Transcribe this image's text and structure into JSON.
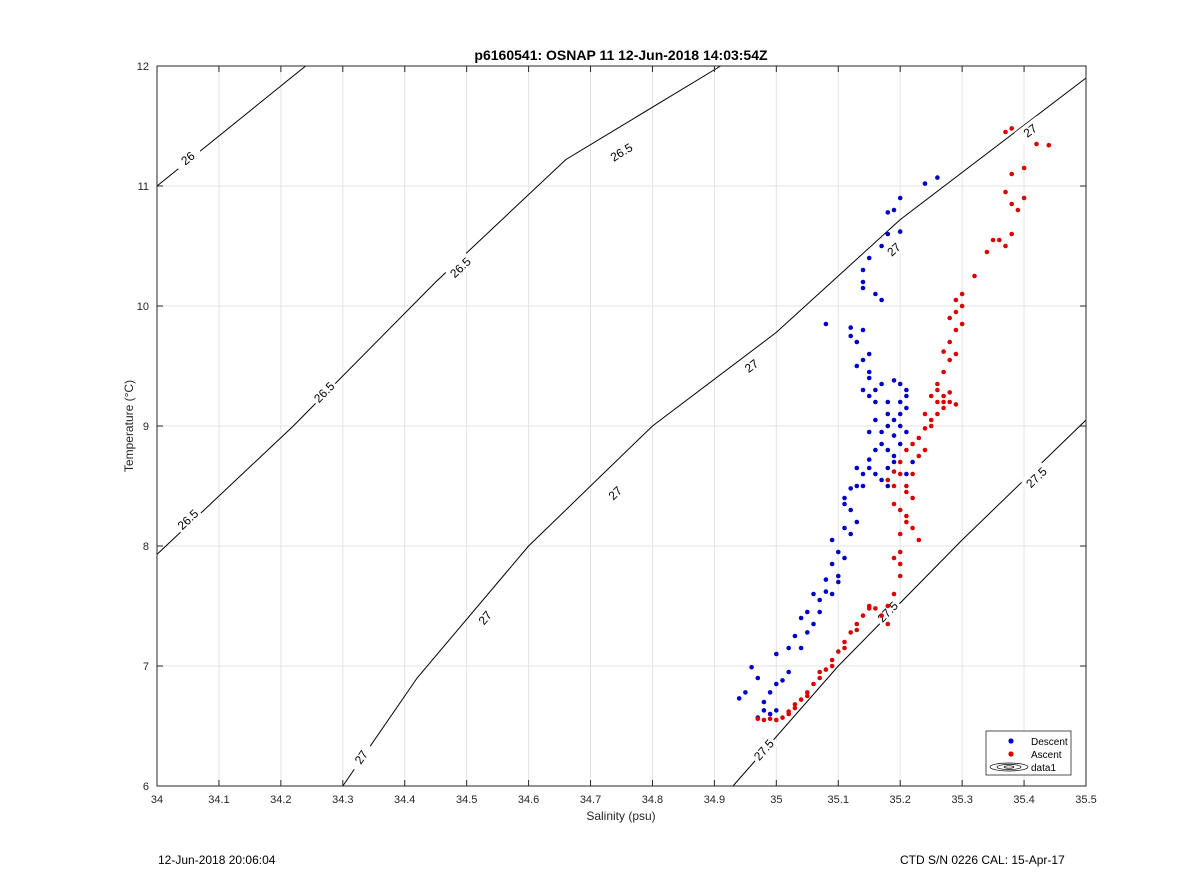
{
  "chart_data": {
    "type": "scatter",
    "title": "p6160541: OSNAP 11 12-Jun-2018 14:03:54Z",
    "xlabel": "Salinity (psu)",
    "ylabel": "Temperature (°C)",
    "xlim": [
      34,
      35.5
    ],
    "ylim": [
      6,
      12
    ],
    "xticks": [
      34,
      34.1,
      34.2,
      34.3,
      34.4,
      34.5,
      34.6,
      34.7,
      34.8,
      34.9,
      35,
      35.1,
      35.2,
      35.3,
      35.4,
      35.5
    ],
    "xtick_labels": [
      "34",
      "34.1",
      "34.2",
      "34.3",
      "34.4",
      "34.5",
      "34.6",
      "34.7",
      "34.8",
      "34.9",
      "35",
      "35.1",
      "35.2",
      "35.3",
      "35.4",
      "35.5"
    ],
    "yticks": [
      6,
      7,
      8,
      9,
      10,
      11,
      12
    ],
    "ytick_labels": [
      "6",
      "7",
      "8",
      "9",
      "10",
      "11",
      "12"
    ],
    "grid": true,
    "legend_position": "bottom-right",
    "legend": [
      {
        "name": "Descent",
        "color": "#0000cc",
        "marker": "dot"
      },
      {
        "name": "Ascent",
        "color": "#dd0000",
        "marker": "dot"
      },
      {
        "name": "data1",
        "marker": "contour"
      }
    ],
    "contours": [
      {
        "level": "26",
        "points": [
          [
            34.0,
            11.0
          ],
          [
            34.24,
            12.0
          ]
        ],
        "labels": [
          {
            "x": 34.05,
            "y": 11.23
          }
        ]
      },
      {
        "level": "26.5",
        "points": [
          [
            34.0,
            7.93
          ],
          [
            34.22,
            9.0
          ],
          [
            34.45,
            10.2
          ],
          [
            34.66,
            11.22
          ],
          [
            34.91,
            12.0
          ]
        ],
        "labels": [
          {
            "x": 34.05,
            "y": 8.22
          },
          {
            "x": 34.27,
            "y": 9.28
          },
          {
            "x": 34.49,
            "y": 10.32
          },
          {
            "x": 34.75,
            "y": 11.28
          }
        ]
      },
      {
        "level": "27",
        "points": [
          [
            34.3,
            6.0
          ],
          [
            34.42,
            6.9
          ],
          [
            34.6,
            8.0
          ],
          [
            34.8,
            9.0
          ],
          [
            35.0,
            9.78
          ],
          [
            35.2,
            10.72
          ],
          [
            35.5,
            11.9
          ]
        ],
        "labels": [
          {
            "x": 34.33,
            "y": 6.24
          },
          {
            "x": 34.53,
            "y": 7.4
          },
          {
            "x": 34.74,
            "y": 8.44
          },
          {
            "x": 34.96,
            "y": 9.5
          },
          {
            "x": 35.19,
            "y": 10.47
          },
          {
            "x": 35.41,
            "y": 11.46
          }
        ]
      },
      {
        "level": "27.5",
        "points": [
          [
            34.93,
            6.0
          ],
          [
            35.1,
            7.0
          ],
          [
            35.3,
            8.05
          ],
          [
            35.5,
            9.05
          ]
        ],
        "labels": [
          {
            "x": 34.98,
            "y": 6.3
          },
          {
            "x": 35.18,
            "y": 7.45
          },
          {
            "x": 35.42,
            "y": 8.57
          }
        ]
      }
    ],
    "series": [
      {
        "name": "Descent",
        "color": "#0000cc",
        "points": [
          [
            34.94,
            6.73
          ],
          [
            34.95,
            6.78
          ],
          [
            34.96,
            6.99
          ],
          [
            34.97,
            6.9
          ],
          [
            34.97,
            6.57
          ],
          [
            34.98,
            6.63
          ],
          [
            34.99,
            6.78
          ],
          [
            34.99,
            6.6
          ],
          [
            35.0,
            6.63
          ],
          [
            35.01,
            6.88
          ],
          [
            35.0,
            7.1
          ],
          [
            35.02,
            7.15
          ],
          [
            35.03,
            7.25
          ],
          [
            35.04,
            7.4
          ],
          [
            35.05,
            7.28
          ],
          [
            35.06,
            7.35
          ],
          [
            35.07,
            7.55
          ],
          [
            35.08,
            7.62
          ],
          [
            35.08,
            7.72
          ],
          [
            35.09,
            7.85
          ],
          [
            35.1,
            7.95
          ],
          [
            35.09,
            8.05
          ],
          [
            35.1,
            7.7
          ],
          [
            35.11,
            8.15
          ],
          [
            35.12,
            8.3
          ],
          [
            35.11,
            8.4
          ],
          [
            35.12,
            8.48
          ],
          [
            35.13,
            8.5
          ],
          [
            35.14,
            8.6
          ],
          [
            35.15,
            8.72
          ],
          [
            35.16,
            8.8
          ],
          [
            35.17,
            8.55
          ],
          [
            35.18,
            8.65
          ],
          [
            35.19,
            8.75
          ],
          [
            35.2,
            8.85
          ],
          [
            35.21,
            8.95
          ],
          [
            35.15,
            8.95
          ],
          [
            35.16,
            9.05
          ],
          [
            35.18,
            9.1
          ],
          [
            35.2,
            9.2
          ],
          [
            35.21,
            9.3
          ],
          [
            35.17,
            9.35
          ],
          [
            35.19,
            9.38
          ],
          [
            35.15,
            9.45
          ],
          [
            35.14,
            9.55
          ],
          [
            35.13,
            9.7
          ],
          [
            35.14,
            9.8
          ],
          [
            35.12,
            9.82
          ],
          [
            35.08,
            9.85
          ],
          [
            35.16,
            10.1
          ],
          [
            35.17,
            10.05
          ],
          [
            35.14,
            10.15
          ],
          [
            35.14,
            10.3
          ],
          [
            35.15,
            10.4
          ],
          [
            35.17,
            10.5
          ],
          [
            35.18,
            10.6
          ],
          [
            35.2,
            10.62
          ],
          [
            35.18,
            10.78
          ],
          [
            35.2,
            10.9
          ],
          [
            35.24,
            11.02
          ],
          [
            35.26,
            11.07
          ],
          [
            35.16,
            9.2
          ],
          [
            35.18,
            9.0
          ],
          [
            35.2,
            9.1
          ],
          [
            35.19,
            8.92
          ],
          [
            35.17,
            8.85
          ],
          [
            35.15,
            8.65
          ],
          [
            35.14,
            8.5
          ],
          [
            35.21,
            8.6
          ],
          [
            35.22,
            8.7
          ],
          [
            35.13,
            8.2
          ],
          [
            35.12,
            8.1
          ],
          [
            35.11,
            7.9
          ],
          [
            35.1,
            7.75
          ],
          [
            35.09,
            7.6
          ],
          [
            35.07,
            7.45
          ],
          [
            35.06,
            7.6
          ],
          [
            35.05,
            7.45
          ],
          [
            35.04,
            7.15
          ],
          [
            35.02,
            6.95
          ],
          [
            35.0,
            6.85
          ],
          [
            34.98,
            6.7
          ],
          [
            35.15,
            9.25
          ],
          [
            35.18,
            9.2
          ],
          [
            35.19,
            9.05
          ],
          [
            35.16,
            8.6
          ],
          [
            35.18,
            8.5
          ],
          [
            35.2,
            9.35
          ],
          [
            35.21,
            9.25
          ],
          [
            35.13,
            9.5
          ],
          [
            35.15,
            9.6
          ],
          [
            35.12,
            9.75
          ],
          [
            35.14,
            10.2
          ],
          [
            35.19,
            10.8
          ],
          [
            35.21,
            9.15
          ],
          [
            35.17,
            8.95
          ],
          [
            35.15,
            9.4
          ],
          [
            35.16,
            9.3
          ],
          [
            35.18,
            8.8
          ],
          [
            35.19,
            8.7
          ],
          [
            35.13,
            8.65
          ],
          [
            35.11,
            8.35
          ],
          [
            35.14,
            9.3
          ],
          [
            35.2,
            9.0
          ]
        ]
      },
      {
        "name": "Ascent",
        "color": "#dd0000",
        "points": [
          [
            34.97,
            6.56
          ],
          [
            34.98,
            6.55
          ],
          [
            34.99,
            6.56
          ],
          [
            35.0,
            6.55
          ],
          [
            35.01,
            6.57
          ],
          [
            35.02,
            6.6
          ],
          [
            35.03,
            6.65
          ],
          [
            35.04,
            6.72
          ],
          [
            35.05,
            6.78
          ],
          [
            35.06,
            6.85
          ],
          [
            35.07,
            6.9
          ],
          [
            35.08,
            6.97
          ],
          [
            35.09,
            7.05
          ],
          [
            35.1,
            7.12
          ],
          [
            35.11,
            7.2
          ],
          [
            35.12,
            7.28
          ],
          [
            35.13,
            7.35
          ],
          [
            35.14,
            7.42
          ],
          [
            35.15,
            7.5
          ],
          [
            35.16,
            7.48
          ],
          [
            35.17,
            7.42
          ],
          [
            35.18,
            7.35
          ],
          [
            35.19,
            7.6
          ],
          [
            35.2,
            7.75
          ],
          [
            35.19,
            7.9
          ],
          [
            35.2,
            7.95
          ],
          [
            35.2,
            8.1
          ],
          [
            35.21,
            8.2
          ],
          [
            35.2,
            8.3
          ],
          [
            35.22,
            8.4
          ],
          [
            35.21,
            8.5
          ],
          [
            35.2,
            8.6
          ],
          [
            35.19,
            8.62
          ],
          [
            35.18,
            8.55
          ],
          [
            35.2,
            8.7
          ],
          [
            35.21,
            8.8
          ],
          [
            35.22,
            8.85
          ],
          [
            35.23,
            8.9
          ],
          [
            35.24,
            8.98
          ],
          [
            35.25,
            9.05
          ],
          [
            35.26,
            9.1
          ],
          [
            35.27,
            9.15
          ],
          [
            35.28,
            9.2
          ],
          [
            35.29,
            9.18
          ],
          [
            35.27,
            9.25
          ],
          [
            35.26,
            9.35
          ],
          [
            35.27,
            9.45
          ],
          [
            35.28,
            9.55
          ],
          [
            35.27,
            9.62
          ],
          [
            35.28,
            9.7
          ],
          [
            35.29,
            9.8
          ],
          [
            35.28,
            9.9
          ],
          [
            35.3,
            10.0
          ],
          [
            35.29,
            10.05
          ],
          [
            35.3,
            10.1
          ],
          [
            35.32,
            10.25
          ],
          [
            35.34,
            10.45
          ],
          [
            35.36,
            10.55
          ],
          [
            35.38,
            10.6
          ],
          [
            35.37,
            10.5
          ],
          [
            35.39,
            10.8
          ],
          [
            35.4,
            10.9
          ],
          [
            35.37,
            10.95
          ],
          [
            35.38,
            11.1
          ],
          [
            35.4,
            11.15
          ],
          [
            35.37,
            11.45
          ],
          [
            35.38,
            11.48
          ],
          [
            35.42,
            11.35
          ],
          [
            35.44,
            11.34
          ],
          [
            35.23,
            8.05
          ],
          [
            35.22,
            8.15
          ],
          [
            35.2,
            7.85
          ],
          [
            35.21,
            8.25
          ],
          [
            35.19,
            8.35
          ],
          [
            35.22,
            8.6
          ],
          [
            35.23,
            8.75
          ],
          [
            35.24,
            8.8
          ],
          [
            35.25,
            9.0
          ],
          [
            35.26,
            9.2
          ],
          [
            35.25,
            9.25
          ],
          [
            35.26,
            9.3
          ],
          [
            35.27,
            9.2
          ],
          [
            35.29,
            9.6
          ],
          [
            35.29,
            9.95
          ],
          [
            35.02,
            6.62
          ],
          [
            35.03,
            6.68
          ],
          [
            35.05,
            6.75
          ],
          [
            35.07,
            6.95
          ],
          [
            35.09,
            7.0
          ],
          [
            35.11,
            7.15
          ],
          [
            35.13,
            7.3
          ],
          [
            35.15,
            7.48
          ],
          [
            35.18,
            7.5
          ],
          [
            35.21,
            8.45
          ],
          [
            35.19,
            8.5
          ],
          [
            35.24,
            9.1
          ],
          [
            35.28,
            9.28
          ],
          [
            35.3,
            9.85
          ],
          [
            35.35,
            10.55
          ],
          [
            35.38,
            10.85
          ]
        ]
      }
    ]
  },
  "footer": {
    "left": "12-Jun-2018 20:06:04",
    "right": "CTD S/N 0226  CAL: 15-Apr-17"
  }
}
